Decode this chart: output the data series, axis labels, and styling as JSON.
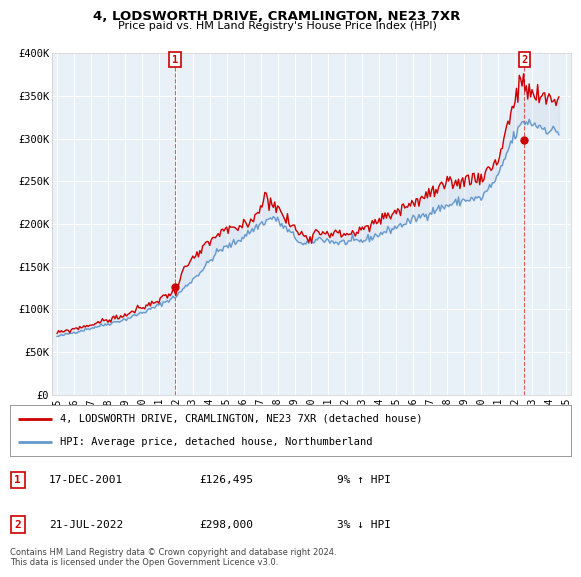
{
  "title": "4, LODSWORTH DRIVE, CRAMLINGTON, NE23 7XR",
  "subtitle": "Price paid vs. HM Land Registry's House Price Index (HPI)",
  "legend_line1": "4, LODSWORTH DRIVE, CRAMLINGTON, NE23 7XR (detached house)",
  "legend_line2": "HPI: Average price, detached house, Northumberland",
  "legend_color1": "#cc0000",
  "legend_color2": "#6699cc",
  "annotation1_label": "1",
  "annotation1_date": "17-DEC-2001",
  "annotation1_price": "£126,495",
  "annotation1_hpi": "9% ↑ HPI",
  "annotation2_label": "2",
  "annotation2_date": "21-JUL-2022",
  "annotation2_price": "£298,000",
  "annotation2_hpi": "3% ↓ HPI",
  "footer": "Contains HM Land Registry data © Crown copyright and database right 2024.\nThis data is licensed under the Open Government Licence v3.0.",
  "bg_color": "#ffffff",
  "plot_bg_color": "#e8f0f8",
  "grid_color": "#ffffff",
  "sale1_x": 2001.96,
  "sale1_y": 126495,
  "sale2_x": 2022.55,
  "sale2_y": 298000,
  "ylim": [
    0,
    400000
  ],
  "xlim": [
    1994.7,
    2025.3
  ],
  "xticks": [
    1995,
    1996,
    1997,
    1998,
    1999,
    2000,
    2001,
    2002,
    2003,
    2004,
    2005,
    2006,
    2007,
    2008,
    2009,
    2010,
    2011,
    2012,
    2013,
    2014,
    2015,
    2016,
    2017,
    2018,
    2019,
    2020,
    2021,
    2022,
    2023,
    2024,
    2025
  ],
  "yticks": [
    0,
    50000,
    100000,
    150000,
    200000,
    250000,
    300000,
    350000,
    400000
  ],
  "ytick_labels": [
    "£0",
    "£50K",
    "£100K",
    "£150K",
    "£200K",
    "£250K",
    "£300K",
    "£350K",
    "£400K"
  ]
}
